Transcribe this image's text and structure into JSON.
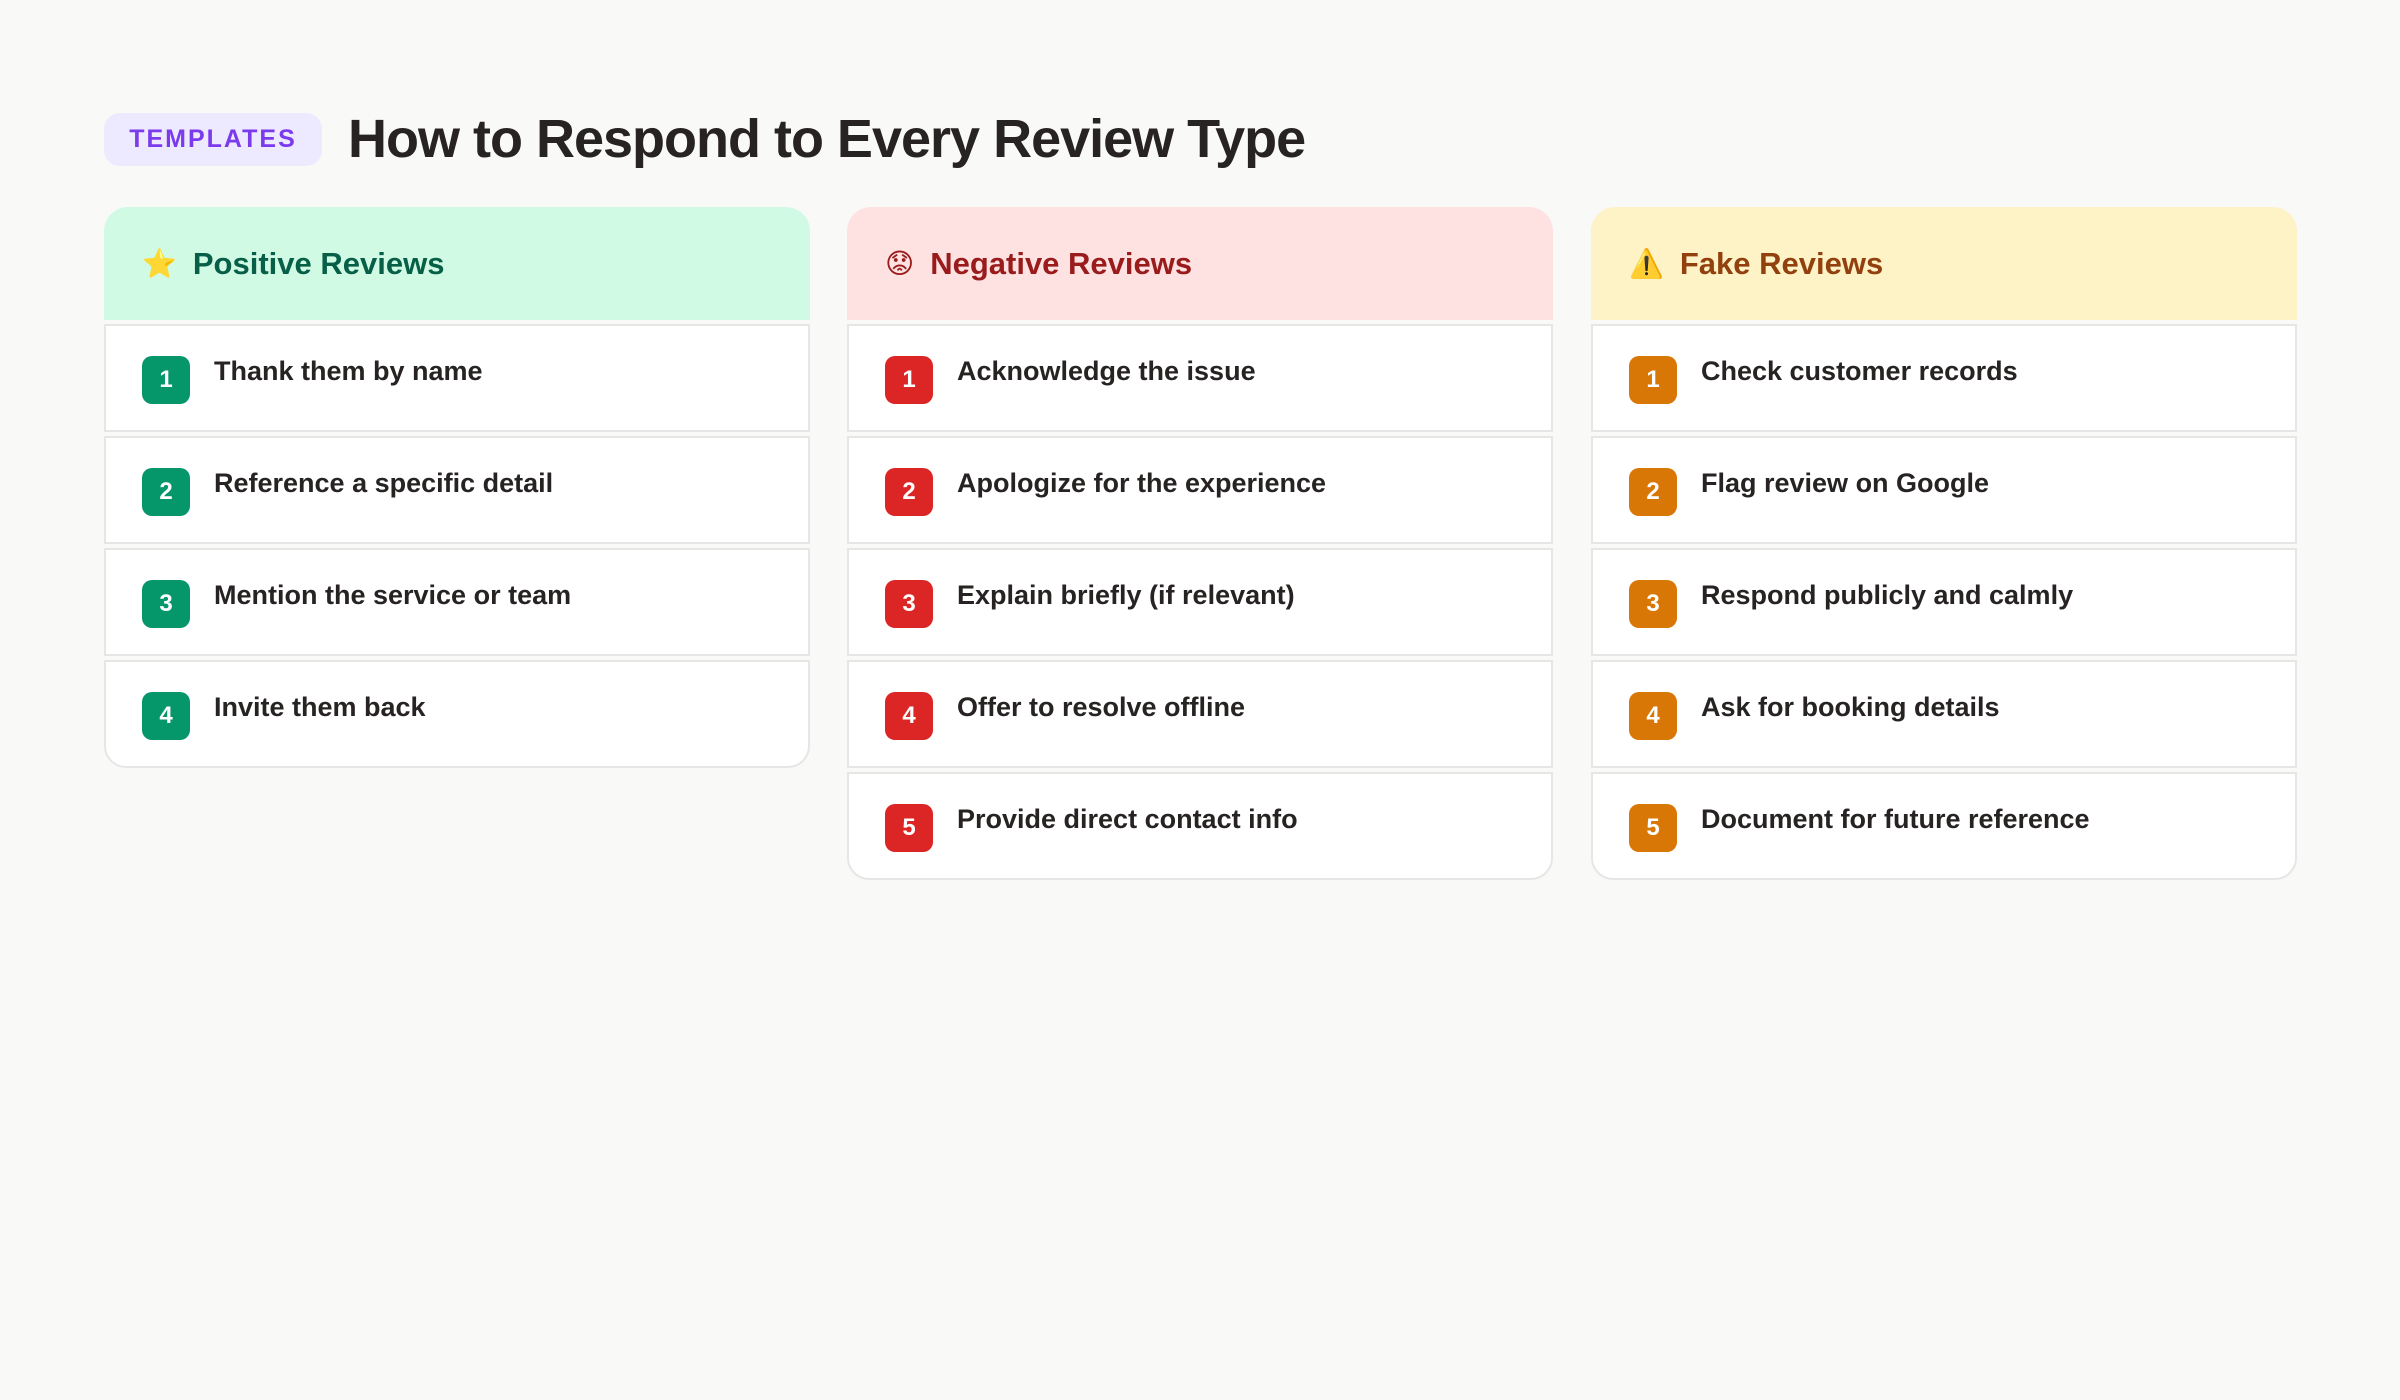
{
  "header": {
    "tag": "TEMPLATES",
    "title": "How to Respond to Every Review Type"
  },
  "columns": [
    {
      "title": "Positive Reviews",
      "icon": "star-icon",
      "emoji": "⭐",
      "header_bg": "#d1fae5",
      "header_color": "#065f46",
      "accent": "#059669",
      "items": [
        "Thank them by name",
        "Reference a specific detail",
        "Mention the service or team",
        "Invite them back"
      ]
    },
    {
      "title": "Negative Reviews",
      "icon": "worried-face-icon",
      "emoji": "😟",
      "header_bg": "#fee2e2",
      "header_color": "#991b1b",
      "accent": "#dc2626",
      "items": [
        "Acknowledge the issue",
        "Apologize for the experience",
        "Explain briefly (if relevant)",
        "Offer to resolve offline",
        "Provide direct contact info"
      ]
    },
    {
      "title": "Fake Reviews",
      "icon": "warning-icon",
      "emoji": "⚠️",
      "header_bg": "#fef3c7",
      "header_color": "#92400e",
      "accent": "#d97706",
      "items": [
        "Check customer records",
        "Flag review on Google",
        "Respond publicly and calmly",
        "Ask for booking details",
        "Document for future reference"
      ]
    }
  ]
}
